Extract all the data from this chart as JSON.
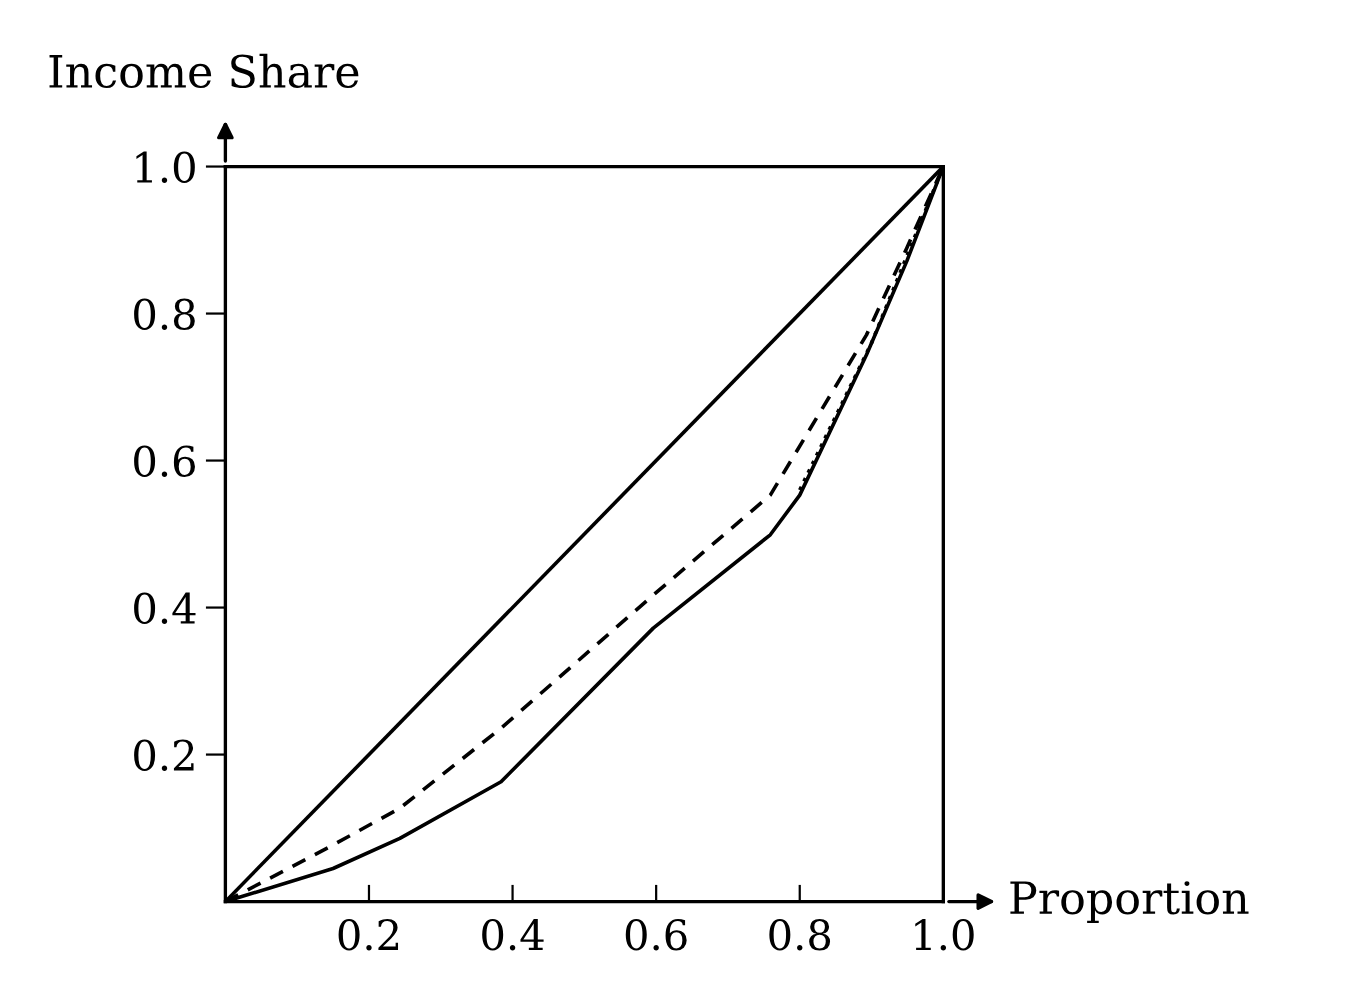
{
  "chart_data": {
    "type": "line",
    "xlabel": "Proportion",
    "ylabel": "Income Share",
    "xlim": [
      0,
      1.0
    ],
    "ylim": [
      0,
      1.0
    ],
    "xticks": [
      0.2,
      0.4,
      0.6,
      0.8,
      {
        "value": 1.0,
        "label": "1.0"
      }
    ],
    "yticks": [
      0.2,
      0.4,
      0.6,
      0.8,
      {
        "value": 1.0,
        "label": "1.0"
      }
    ],
    "grid": false,
    "series": [
      {
        "color": "#000000",
        "line_style": "solid",
        "x": [
          0,
          1
        ],
        "values": [
          0,
          1
        ]
      },
      {
        "color": "#000000",
        "line_style": "dashed",
        "x": [
          0,
          0.15,
          0.243,
          0.384,
          0.596,
          0.759,
          0.893,
          0.949,
          1
        ],
        "values": [
          0,
          0.077,
          0.127,
          0.236,
          0.417,
          0.553,
          0.771,
          0.889,
          1
        ]
      },
      {
        "color": "#000000",
        "line_style": "solid",
        "x": [
          0,
          0.15,
          0.243,
          0.384,
          0.596,
          0.759,
          0.8,
          0.893,
          0.949,
          1
        ],
        "values": [
          0,
          0.045,
          0.086,
          0.163,
          0.372,
          0.499,
          0.553,
          0.744,
          0.871,
          1
        ]
      },
      {
        "color": "#000000",
        "line_style": "dotted",
        "x": [
          0.8,
          0.9,
          0.95,
          1
        ],
        "values": [
          0.56,
          0.76,
          0.88,
          1
        ]
      }
    ]
  }
}
